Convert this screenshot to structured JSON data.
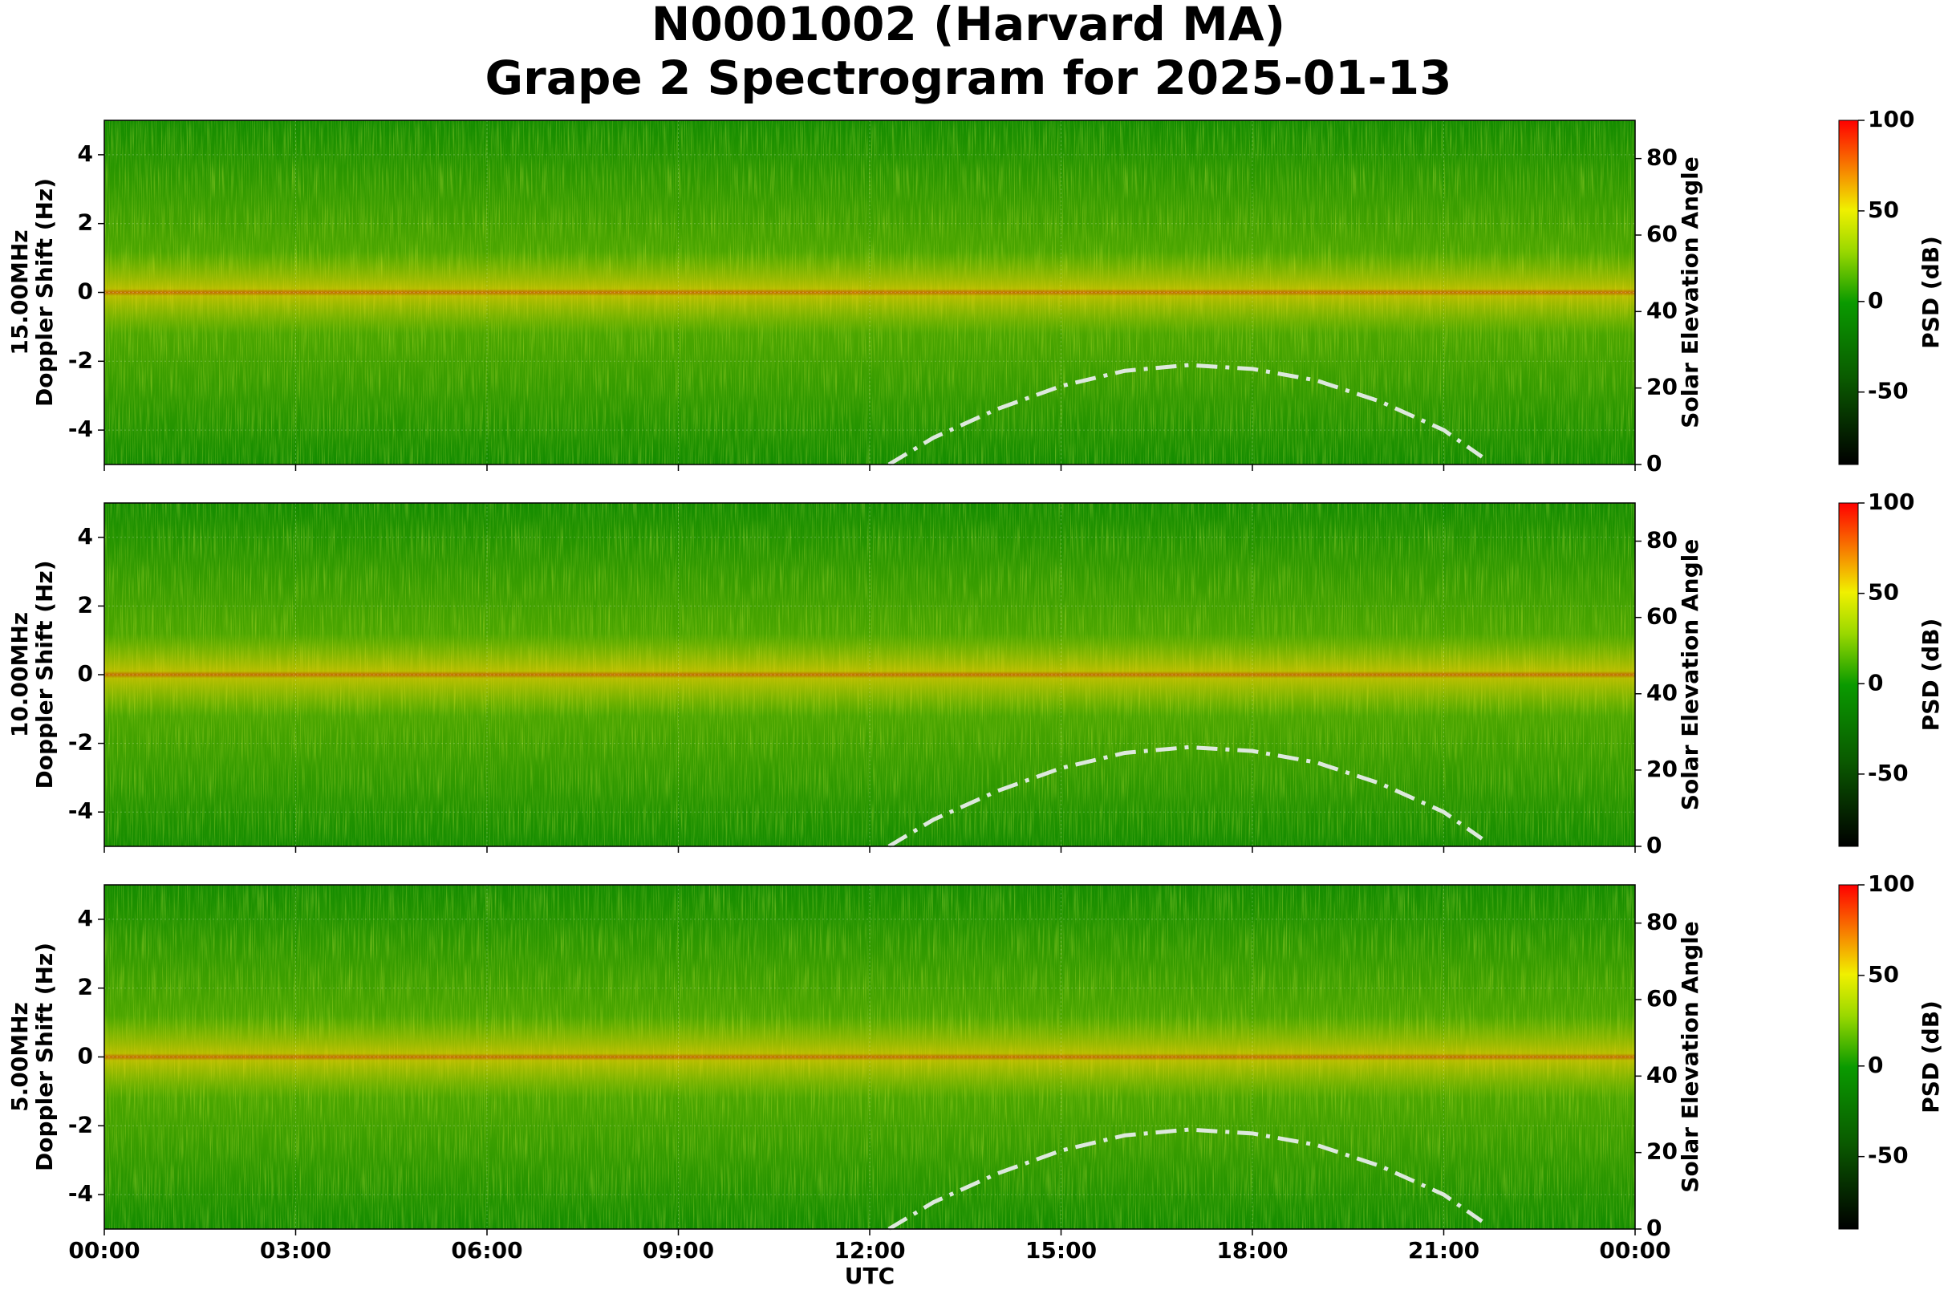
{
  "title": "N0001002 (Harvard MA)",
  "subtitle": "Grape 2 Spectrogram for 2025-01-13",
  "xlabel": "UTC",
  "xlim": [
    0,
    24
  ],
  "xticks": [
    {
      "value": 0,
      "label": "00:00"
    },
    {
      "value": 3,
      "label": "03:00"
    },
    {
      "value": 6,
      "label": "06:00"
    },
    {
      "value": 9,
      "label": "09:00"
    },
    {
      "value": 12,
      "label": "12:00"
    },
    {
      "value": 15,
      "label": "15:00"
    },
    {
      "value": 18,
      "label": "18:00"
    },
    {
      "value": 21,
      "label": "21:00"
    },
    {
      "value": 24,
      "label": "00:00"
    }
  ],
  "chart_data": [
    {
      "type": "spectrogram",
      "frequency": "15.00MHz",
      "ylabel": "Doppler Shift (Hz)",
      "ylim": [
        -5,
        5
      ],
      "yticks": [
        -4,
        -2,
        0,
        2,
        4
      ],
      "grid": true,
      "y2label": "Solar Elevation Angle",
      "y2lim": [
        0,
        90
      ],
      "y2ticks": [
        0,
        20,
        40,
        60,
        80
      ],
      "solar_elevation": {
        "color": "#dde8dd",
        "x": [
          12.3,
          13,
          14,
          15,
          16,
          17,
          18,
          19,
          20,
          21,
          21.6
        ],
        "values": [
          0,
          7,
          14.5,
          20.5,
          24.5,
          26,
          25,
          22,
          16.5,
          9,
          2
        ]
      },
      "colorbar": {
        "label": "PSD (dB)",
        "lim": [
          -90,
          100
        ],
        "ticks": [
          -50,
          0,
          50,
          100
        ]
      }
    },
    {
      "type": "spectrogram",
      "frequency": "10.00MHz",
      "ylabel": "Doppler Shift (Hz)",
      "ylim": [
        -5,
        5
      ],
      "yticks": [
        -4,
        -2,
        0,
        2,
        4
      ],
      "grid": true,
      "y2label": "Solar Elevation Angle",
      "y2lim": [
        0,
        90
      ],
      "y2ticks": [
        0,
        20,
        40,
        60,
        80
      ],
      "solar_elevation": {
        "color": "#dde8dd",
        "x": [
          12.3,
          13,
          14,
          15,
          16,
          17,
          18,
          19,
          20,
          21,
          21.6
        ],
        "values": [
          0,
          7,
          14.5,
          20.5,
          24.5,
          26,
          25,
          22,
          16.5,
          9,
          2
        ]
      },
      "colorbar": {
        "label": "PSD (dB)",
        "lim": [
          -90,
          100
        ],
        "ticks": [
          -50,
          0,
          50,
          100
        ]
      }
    },
    {
      "type": "spectrogram",
      "frequency": "5.00MHz",
      "ylabel": "Doppler Shift (Hz)",
      "ylim": [
        -5,
        5
      ],
      "yticks": [
        -4,
        -2,
        0,
        2,
        4
      ],
      "grid": true,
      "y2label": "Solar Elevation Angle",
      "y2lim": [
        0,
        90
      ],
      "y2ticks": [
        0,
        20,
        40,
        60,
        80
      ],
      "solar_elevation": {
        "color": "#dde8dd",
        "x": [
          12.3,
          13,
          14,
          15,
          16,
          17,
          18,
          19,
          20,
          21,
          21.6
        ],
        "values": [
          0,
          7,
          14.5,
          20.5,
          24.5,
          26,
          25,
          22,
          16.5,
          9,
          2
        ]
      },
      "colorbar": {
        "label": "PSD (dB)",
        "lim": [
          -90,
          100
        ],
        "ticks": [
          -50,
          0,
          50,
          100
        ]
      }
    }
  ]
}
